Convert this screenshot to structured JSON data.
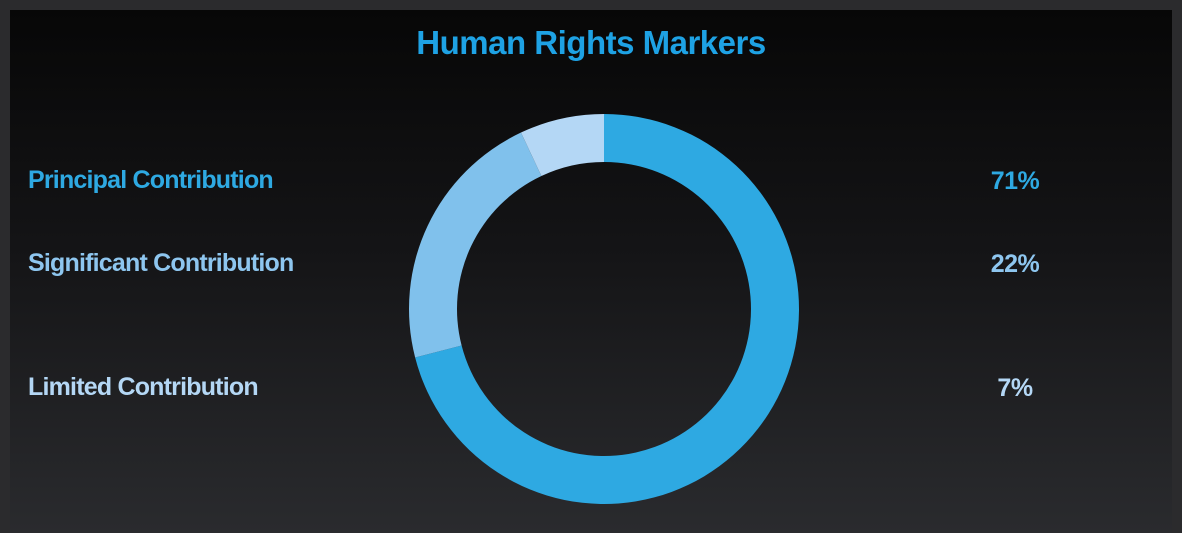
{
  "chart_data": {
    "type": "donut",
    "title": "Human Rights Markers",
    "categories": [
      "Principal Contribution",
      "Significant Contribution",
      "Limited Contribution"
    ],
    "values": [
      71,
      22,
      7
    ],
    "value_labels": [
      "71%",
      "22%",
      "7%"
    ],
    "colors": [
      "#2ea9e2",
      "#80c1ec",
      "#b4d7f5"
    ]
  }
}
